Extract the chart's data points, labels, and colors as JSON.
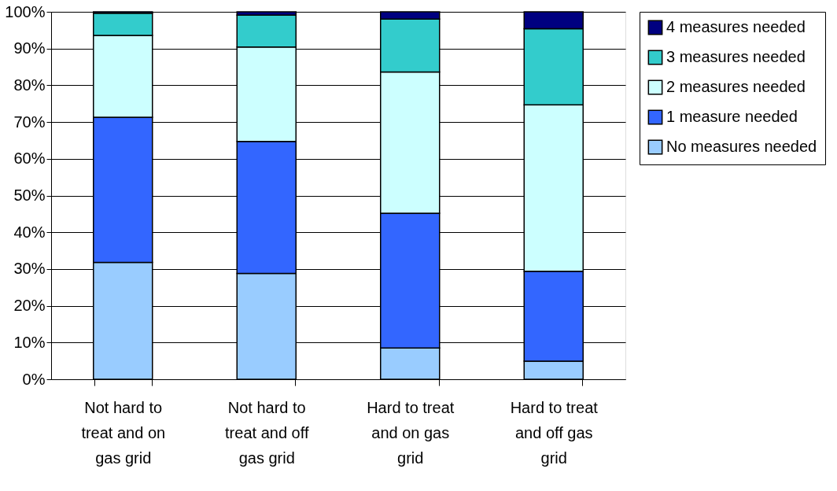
{
  "chart_data": {
    "type": "bar",
    "stacked": true,
    "categories": [
      "Not hard to treat and on gas grid",
      "Not hard to treat and off gas grid",
      "Hard to treat and on gas grid",
      "Hard to treat and off gas grid"
    ],
    "series": [
      {
        "name": "No measures needed",
        "color": "#99ccff",
        "values": [
          31.8,
          28.8,
          8.5,
          4.9
        ]
      },
      {
        "name": "1 measure needed",
        "color": "#3366ff",
        "values": [
          39.5,
          35.9,
          36.7,
          24.5
        ]
      },
      {
        "name": "2 measures needed",
        "color": "#ccffff",
        "values": [
          22.3,
          25.7,
          38.4,
          45.3
        ]
      },
      {
        "name": "3 measures needed",
        "color": "#33cccc",
        "values": [
          6.0,
          8.7,
          14.4,
          20.7
        ]
      },
      {
        "name": "4 measures needed",
        "color": "#000080",
        "values": [
          0.4,
          0.9,
          2.0,
          4.6
        ]
      }
    ],
    "ylim": [
      0,
      100
    ],
    "yticks": [
      {
        "value": 0,
        "label": "0%"
      },
      {
        "value": 10,
        "label": "10%"
      },
      {
        "value": 20,
        "label": "20%"
      },
      {
        "value": 30,
        "label": "30%"
      },
      {
        "value": 40,
        "label": "40%"
      },
      {
        "value": 50,
        "label": "50%"
      },
      {
        "value": 60,
        "label": "60%"
      },
      {
        "value": 70,
        "label": "70%"
      },
      {
        "value": 80,
        "label": "80%"
      },
      {
        "value": 90,
        "label": "90%"
      },
      {
        "value": 100,
        "label": "100%"
      }
    ],
    "grid": "y",
    "legend": "right"
  }
}
